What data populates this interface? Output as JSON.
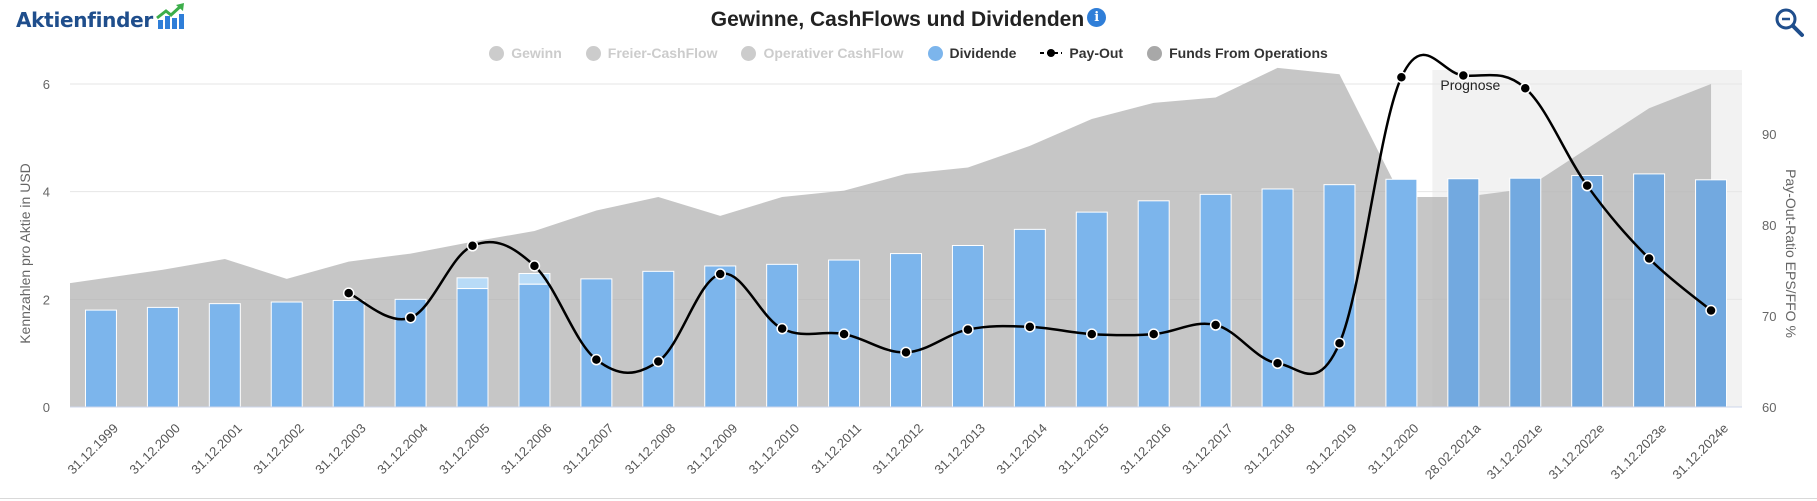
{
  "app": {
    "logo_text": "Aktienfinder",
    "title": "Gewinne, CashFlows und Dividenden",
    "info_icon": "info-icon",
    "zoom_icon": "zoom-icon"
  },
  "legend": [
    {
      "label": "Gewinn",
      "visible": false,
      "color": "#cccccc",
      "symbol": "dot"
    },
    {
      "label": "Freier-CashFlow",
      "visible": false,
      "color": "#cccccc",
      "symbol": "dot"
    },
    {
      "label": "Operativer CashFlow",
      "visible": false,
      "color": "#cccccc",
      "symbol": "dot"
    },
    {
      "label": "Dividende",
      "visible": true,
      "color": "#7cb5ec",
      "symbol": "dot"
    },
    {
      "label": "Pay-Out",
      "visible": true,
      "color": "#000000",
      "symbol": "line-dot"
    },
    {
      "label": "Funds From Operations",
      "visible": true,
      "color": "#b0b0b0",
      "symbol": "dot"
    }
  ],
  "chart_data": {
    "type": "bar",
    "categories": [
      "31.12.1999",
      "31.12.2000",
      "31.12.2001",
      "31.12.2002",
      "31.12.2003",
      "31.12.2004",
      "31.12.2005",
      "31.12.2006",
      "31.12.2007",
      "31.12.2008",
      "31.12.2009",
      "31.12.2010",
      "31.12.2011",
      "31.12.2012",
      "31.12.2013",
      "31.12.2014",
      "31.12.2015",
      "31.12.2016",
      "31.12.2017",
      "31.12.2018",
      "31.12.2019",
      "31.12.2020",
      "28.02.2021a",
      "31.12.2021e",
      "31.12.2022e",
      "31.12.2023e",
      "31.12.2024e"
    ],
    "ylabel": "Kennzahlen pro Aktie in USD",
    "y2label": "Pay-Out-Ratio EPS/FFO %",
    "ylim": [
      0,
      6
    ],
    "y2lim": [
      60,
      97
    ],
    "yticks": [
      0,
      2,
      4,
      6
    ],
    "y2ticks": [
      60,
      70,
      80,
      90
    ],
    "grid": true,
    "forecast_label": "Prognose",
    "forecast_start": "28.02.2021a",
    "series": [
      {
        "name": "Funds From Operations",
        "type": "area",
        "axis": "left",
        "color": "#b3b3b3",
        "values": [
          2.3,
          2.55,
          2.75,
          2.38,
          2.7,
          2.85,
          3.07,
          3.27,
          3.65,
          3.9,
          3.55,
          3.9,
          4.02,
          4.33,
          4.45,
          4.85,
          5.35,
          5.65,
          5.75,
          6.3,
          6.18,
          3.9,
          3.9,
          4.05,
          4.8,
          5.55,
          6.0
        ]
      },
      {
        "name": "Dividende",
        "type": "bar",
        "axis": "left",
        "color": "#7cb5ec",
        "values": [
          1.8,
          1.85,
          1.92,
          1.95,
          1.98,
          2.0,
          2.2,
          2.28,
          2.38,
          2.52,
          2.62,
          2.65,
          2.73,
          2.85,
          3.0,
          3.3,
          3.62,
          3.83,
          3.95,
          4.05,
          4.13,
          4.23,
          4.24,
          4.25,
          4.3,
          4.33,
          4.22
        ],
        "extra_values": [
          0,
          0,
          0,
          0,
          0,
          0,
          0.2,
          0.2,
          0,
          0,
          0,
          0,
          0,
          0,
          0,
          0,
          0,
          0,
          0,
          0,
          0,
          0,
          0,
          0,
          0,
          0,
          0
        ]
      },
      {
        "name": "Pay-Out",
        "type": "line",
        "axis": "right",
        "color": "#000000",
        "values": [
          null,
          null,
          null,
          null,
          72.5,
          69.8,
          77.7,
          75.5,
          65.2,
          65.0,
          74.6,
          68.6,
          68.0,
          66.0,
          68.5,
          68.8,
          68.0,
          68.0,
          69.0,
          64.8,
          67.0,
          96.2,
          96.4,
          95.0,
          84.3,
          76.3,
          70.6
        ]
      }
    ]
  }
}
